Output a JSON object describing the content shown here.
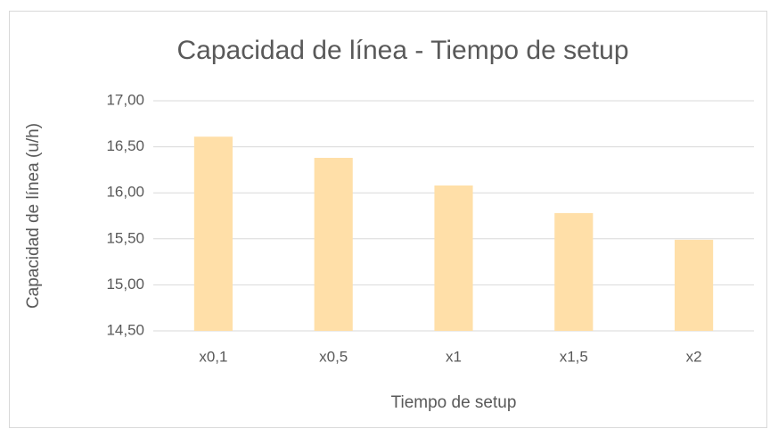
{
  "chart_data": {
    "type": "bar",
    "title": "Capacidad de línea - Tiempo de setup",
    "x_label": "Tiempo de setup",
    "y_label": "Capacidad de línea (u/h)",
    "categories": [
      "x0,1",
      "x0,5",
      "x1",
      "x1,5",
      "x2"
    ],
    "values": [
      16.61,
      16.38,
      16.08,
      15.78,
      15.49
    ],
    "color": "#FFDFA8",
    "ylim": [
      14.5,
      17
    ],
    "yticks": [
      {
        "value": 14.5,
        "label": "14,50"
      },
      {
        "value": 15,
        "label": "15,00"
      },
      {
        "value": 15.5,
        "label": "15,50"
      },
      {
        "value": 16,
        "label": "16,00"
      },
      {
        "value": 16.5,
        "label": "16,50"
      },
      {
        "value": 17,
        "label": "17,00"
      }
    ],
    "grid": true
  }
}
